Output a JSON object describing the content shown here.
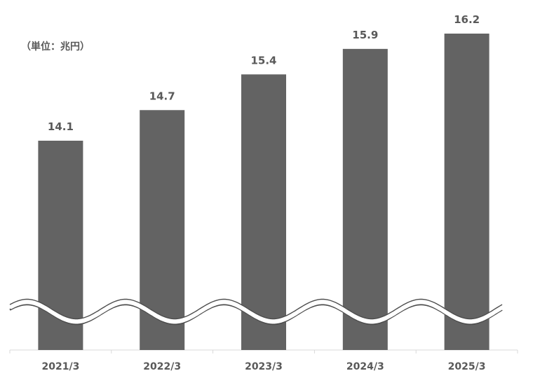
{
  "chart_data": {
    "type": "bar",
    "unit_label": "（単位：兆円）",
    "categories": [
      "2021/3",
      "2022/3",
      "2023/3",
      "2024/3",
      "2025/3"
    ],
    "values": [
      14.1,
      14.7,
      15.4,
      15.9,
      16.2
    ],
    "value_labels": [
      "14.1",
      "14.7",
      "15.4",
      "15.9",
      "16.2"
    ],
    "bar_color": "#636363",
    "axis_break": true,
    "grid": false,
    "legend": "none"
  }
}
